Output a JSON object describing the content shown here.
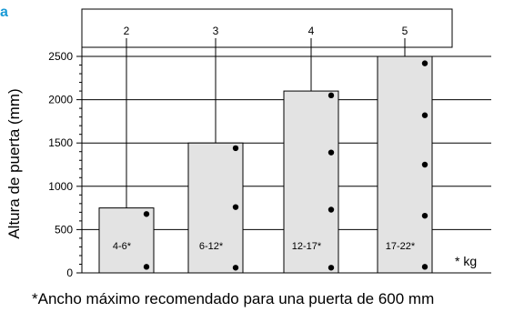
{
  "panel_label": "a",
  "unit_note": "* kg",
  "footnote": "*Ancho máximo recomendado para una puerta de 600 mm",
  "chart_data": {
    "type": "bar",
    "ylabel": "Altura de puerta (mm)",
    "ylim": [
      0,
      2500
    ],
    "yticks": [
      0,
      500,
      1000,
      1500,
      2000,
      2500
    ],
    "grid": true,
    "categories": [
      "2",
      "3",
      "4",
      "5"
    ],
    "values": [
      750,
      1500,
      2100,
      2500
    ],
    "weight_labels": [
      "4-6*",
      "6-12*",
      "12-17*",
      "17-22*"
    ],
    "dots": [
      [
        680,
        70
      ],
      [
        1440,
        760,
        60
      ],
      [
        2050,
        1390,
        730,
        60
      ],
      [
        2420,
        1820,
        1250,
        660,
        70
      ]
    ],
    "colors": {
      "bar_fill": "#e3e3e3",
      "bar_stroke": "#000000",
      "panel_label": "#1a9ad6"
    }
  }
}
